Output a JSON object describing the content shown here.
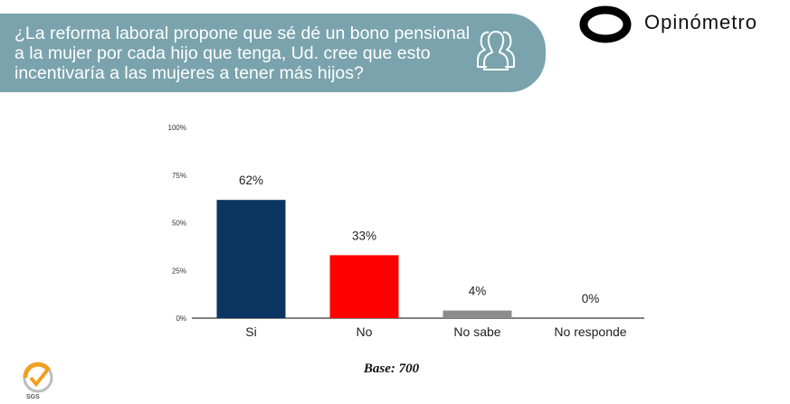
{
  "header": {
    "question_lines": [
      "¿La reforma laboral propone que sé dé un bono pensional",
      "a la mujer por cada hijo que tenga, Ud. cree que esto",
      "incentivaría a las mujeres a tener más hijos?"
    ],
    "icon": "people-group-icon"
  },
  "brand": {
    "name": "Opinómetro",
    "logo": "opinometro-o-logo"
  },
  "chart_data": {
    "type": "bar",
    "categories": [
      "Si",
      "No",
      "No sabe",
      "No responde"
    ],
    "values": [
      62,
      33,
      4,
      0
    ],
    "value_labels": [
      "62%",
      "33%",
      "4%",
      "0%"
    ],
    "colors": [
      "#0b3561",
      "#ff0000",
      "#8c8c8c",
      "#8c8c8c"
    ],
    "ylim": [
      0,
      100
    ],
    "yticks": [
      0,
      25,
      50,
      75,
      100
    ],
    "ytick_labels": [
      "0%",
      "25%",
      "50%",
      "75%",
      "100%"
    ],
    "title": "",
    "xlabel": "",
    "ylabel": "",
    "grid": false
  },
  "footer": {
    "base_label": "Base: 700",
    "cert_text": "SGS",
    "cert_icon": "sgs-certification-icon"
  }
}
